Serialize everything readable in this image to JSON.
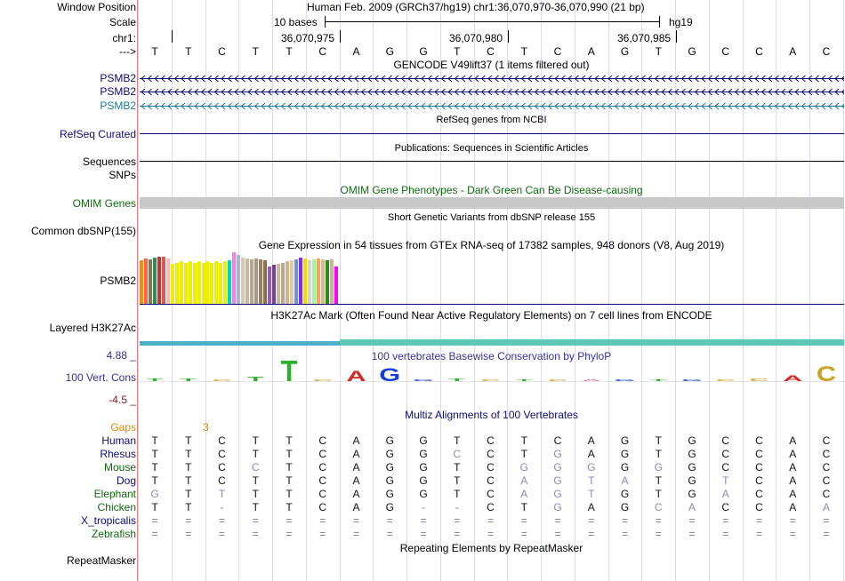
{
  "header": {
    "window_label": "Window Position",
    "assembly_info": "Human Feb. 2009 (GRCh37/hg19)   chr1:36,070,970-36,070,990 (21 bp)",
    "scale_label": "Scale",
    "scale_bar_text": "10 bases",
    "scale_db": "hg19",
    "chrom_label": "chr1:",
    "positions": [
      "36,070,975",
      "36,070,980",
      "36,070,985"
    ],
    "strand_label": "--->"
  },
  "sequence": [
    "T",
    "T",
    "C",
    "T",
    "T",
    "C",
    "A",
    "G",
    "G",
    "T",
    "C",
    "T",
    "C",
    "A",
    "G",
    "T",
    "G",
    "C",
    "C",
    "A",
    "C"
  ],
  "tracks": {
    "gencode": {
      "title": "GENCODE V49lift37 (1 items filtered out)",
      "items": [
        {
          "label": "PSMB2",
          "color": "#0c0c78"
        },
        {
          "label": "PSMB2",
          "color": "#0c0c78"
        },
        {
          "label": "PSMB2",
          "color": "#1a7a9a"
        }
      ]
    },
    "refseq": {
      "title": "RefSeq genes from NCBI",
      "label": "RefSeq Curated"
    },
    "publications": {
      "title": "Publications: Sequences in Scientific Articles",
      "label": "Sequences"
    },
    "snps_label": "SNPs",
    "omim": {
      "title": "OMIM Gene Phenotypes - Dark Green Can Be Disease-causing",
      "label": "OMIM Genes",
      "color": "#0e6b0e"
    },
    "dbsnp": {
      "title": "Short Genetic Variants from dbSNP release 155",
      "label": "Common dbSNP(155)"
    },
    "gtex": {
      "title": "Gene Expression in 54 tissues from GTEx RNA-seq of 17382 samples, 948 donors (V8, Aug 2019)",
      "label": "PSMB2",
      "bars": [
        {
          "v": 0.85,
          "c": "#ff8c00"
        },
        {
          "v": 0.88,
          "c": "#ff6347"
        },
        {
          "v": 0.86,
          "c": "#8b7355"
        },
        {
          "v": 0.9,
          "c": "#2e8b57"
        },
        {
          "v": 0.92,
          "c": "#c0392b"
        },
        {
          "v": 0.92,
          "c": "#cd5c5c"
        },
        {
          "v": 0.88,
          "c": "#ffb6c1"
        },
        {
          "v": 0.78,
          "c": "#eeee00"
        },
        {
          "v": 0.8,
          "c": "#eeee00"
        },
        {
          "v": 0.82,
          "c": "#eeee00"
        },
        {
          "v": 0.8,
          "c": "#eeee00"
        },
        {
          "v": 0.82,
          "c": "#eeee00"
        },
        {
          "v": 0.8,
          "c": "#eeee00"
        },
        {
          "v": 0.82,
          "c": "#eeee00"
        },
        {
          "v": 0.8,
          "c": "#eeee00"
        },
        {
          "v": 0.82,
          "c": "#eeee00"
        },
        {
          "v": 0.8,
          "c": "#eeee00"
        },
        {
          "v": 0.82,
          "c": "#eeee00"
        },
        {
          "v": 0.8,
          "c": "#eeee00"
        },
        {
          "v": 0.82,
          "c": "#eeee00"
        },
        {
          "v": 0.84,
          "c": "#00ced1"
        },
        {
          "v": 1.0,
          "c": "#ee82ee"
        },
        {
          "v": 0.95,
          "c": "#a9b8c9"
        },
        {
          "v": 0.9,
          "c": "#d8c8b0"
        },
        {
          "v": 0.88,
          "c": "#c8b8a0"
        },
        {
          "v": 0.86,
          "c": "#b8a890"
        },
        {
          "v": 0.88,
          "c": "#a89880"
        },
        {
          "v": 0.86,
          "c": "#987f60"
        },
        {
          "v": 0.84,
          "c": "#8b6f50"
        },
        {
          "v": 0.72,
          "c": "#9b59b6"
        },
        {
          "v": 0.75,
          "c": "#7b3f8e"
        },
        {
          "v": 0.78,
          "c": "#c8b8a0"
        },
        {
          "v": 0.8,
          "c": "#b8a890"
        },
        {
          "v": 0.82,
          "c": "#d2b48c"
        },
        {
          "v": 0.84,
          "c": "#e0c8a8"
        },
        {
          "v": 0.86,
          "c": "#6495ed"
        },
        {
          "v": 0.9,
          "c": "#8a2be2"
        },
        {
          "v": 0.88,
          "c": "#ffd700"
        },
        {
          "v": 0.84,
          "c": "#d3d3d3"
        },
        {
          "v": 0.86,
          "c": "#98fb98"
        },
        {
          "v": 0.88,
          "c": "#f4a460"
        },
        {
          "v": 0.86,
          "c": "#deb887"
        },
        {
          "v": 0.84,
          "c": "#228b22"
        },
        {
          "v": 0.86,
          "c": "#d2b48c"
        },
        {
          "v": 0.72,
          "c": "#ff00ff"
        }
      ]
    },
    "h3k27ac": {
      "title": "H3K27Ac Mark (Often Found Near Active Regulatory Elements) on 7 cell lines from ENCODE",
      "label": "Layered H3K27Ac"
    },
    "phylop": {
      "title": "100 vertebrates Basewise Conservation by PhyloP",
      "label": "100 Vert. Cons",
      "max": "4.88 _",
      "min": "-4.5 _"
    },
    "multiz": {
      "title": "Multiz Alignments of 100 Vertebrates",
      "gaps_label": "Gaps",
      "gaps_value": "3",
      "species": [
        {
          "name": "Human",
          "color": "#0c0c78",
          "seq": [
            "T",
            "T",
            "C",
            "T",
            "T",
            "C",
            "A",
            "G",
            "G",
            "T",
            "C",
            "T",
            "C",
            "A",
            "G",
            "T",
            "G",
            "C",
            "C",
            "A",
            "C"
          ]
        },
        {
          "name": "Rhesus",
          "color": "#0c0c78",
          "seq": [
            "T",
            "T",
            "C",
            "T",
            "T",
            "C",
            "A",
            "G",
            "G",
            "C",
            "C",
            "T",
            "G",
            "A",
            "G",
            "T",
            "G",
            "C",
            "C",
            "A",
            "C"
          ]
        },
        {
          "name": "Mouse",
          "color": "#0e6b0e",
          "seq": [
            "T",
            "T",
            "C",
            "C",
            "T",
            "C",
            "A",
            "G",
            "G",
            "T",
            "C",
            "G",
            "G",
            "G",
            "G",
            "G",
            "G",
            "C",
            "C",
            "A",
            "C"
          ]
        },
        {
          "name": "Dog",
          "color": "#0c0c78",
          "seq": [
            "T",
            "T",
            "C",
            "T",
            "T",
            "C",
            "A",
            "G",
            "G",
            "T",
            "C",
            "A",
            "G",
            "T",
            "A",
            "T",
            "G",
            "T",
            "C",
            "A",
            "C"
          ]
        },
        {
          "name": "Elephant",
          "color": "#0e6b0e",
          "seq": [
            "G",
            "T",
            "T",
            "T",
            "T",
            "C",
            "A",
            "G",
            "G",
            "T",
            "C",
            "A",
            "G",
            "T",
            "G",
            "T",
            "G",
            "A",
            "C",
            "A",
            "C"
          ]
        },
        {
          "name": "Chicken",
          "color": "#0e6b0e",
          "seq": [
            "T",
            "T",
            "-",
            "T",
            "T",
            "C",
            "A",
            "G",
            "-",
            "-",
            "C",
            "T",
            "G",
            "A",
            "G",
            "C",
            "A",
            "C",
            "C",
            "A",
            "A"
          ]
        },
        {
          "name": "X_tropicalis",
          "color": "#0c0c78",
          "seq": [
            "=",
            "=",
            "=",
            "=",
            "=",
            "=",
            "=",
            "=",
            "=",
            "=",
            "=",
            "=",
            "=",
            "=",
            "=",
            "=",
            "=",
            "=",
            "=",
            "=",
            "="
          ]
        },
        {
          "name": "Zebrafish",
          "color": "#0e6b0e",
          "seq": [
            "=",
            "=",
            "=",
            "=",
            "=",
            "=",
            "=",
            "=",
            "=",
            "=",
            "=",
            "=",
            "=",
            "=",
            "=",
            "=",
            "=",
            "=",
            "=",
            "=",
            "="
          ]
        }
      ]
    },
    "repeatmasker": {
      "title": "Repeating Elements by RepeatMasker",
      "label": "RepeatMasker"
    }
  },
  "colors": {
    "track_label": "#0c0c78",
    "phylop": "#333399",
    "gaps": "#d48a00"
  }
}
